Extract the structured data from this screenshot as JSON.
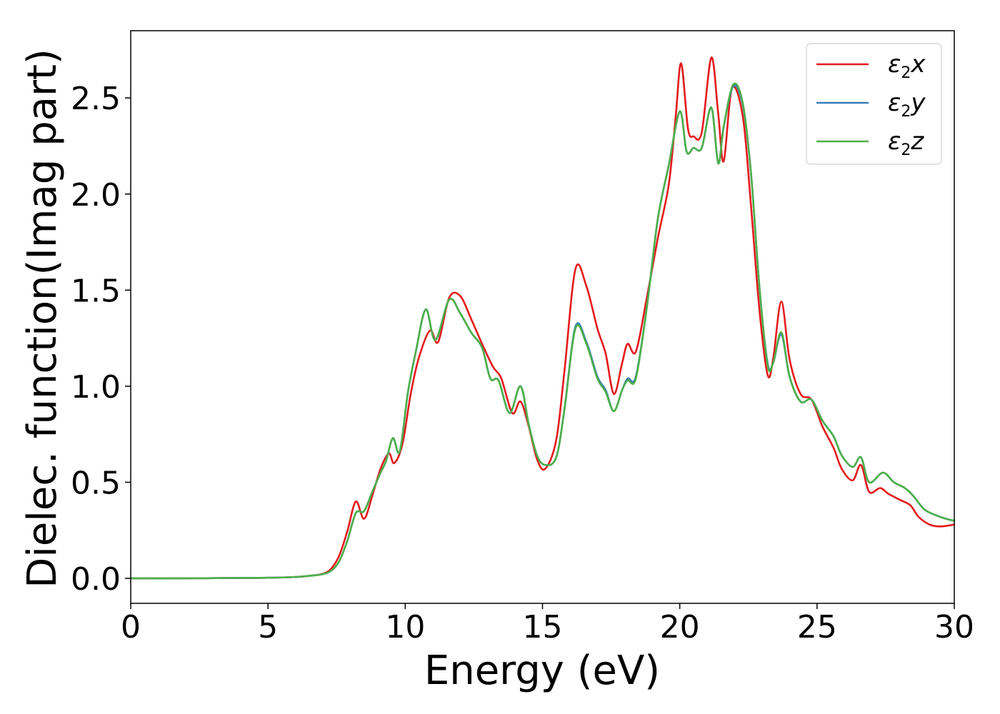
{
  "chart_data": {
    "type": "line",
    "title": "",
    "xlabel": "Energy (eV)",
    "ylabel": "Dielec. function(Imag part)",
    "xlim": [
      0,
      30
    ],
    "ylim": [
      -0.13,
      2.85
    ],
    "xticks": [
      0,
      5,
      10,
      15,
      20,
      25,
      30
    ],
    "xtick_labels": [
      "0",
      "5",
      "10",
      "15",
      "20",
      "25",
      "30"
    ],
    "yticks": [
      0.0,
      0.5,
      1.0,
      1.5,
      2.0,
      2.5
    ],
    "ytick_labels": [
      "0.0",
      "0.5",
      "1.0",
      "1.5",
      "2.0",
      "2.5"
    ],
    "grid": false,
    "legend_position": "top-right",
    "series": [
      {
        "name": "ε2x",
        "legend_base": "ε",
        "legend_sub": "2",
        "legend_suffix": "x",
        "color": "#e31a1c",
        "x": [
          0,
          2,
          4,
          5,
          6,
          6.5,
          7,
          7.3,
          7.6,
          7.9,
          8.2,
          8.5,
          8.8,
          9.1,
          9.4,
          9.6,
          9.9,
          10.2,
          10.5,
          10.9,
          11.2,
          11.6,
          12,
          12.4,
          12.8,
          13.2,
          13.5,
          13.9,
          14.2,
          14.5,
          14.8,
          15.1,
          15.5,
          15.8,
          16.2,
          16.6,
          17,
          17.3,
          17.6,
          17.9,
          18.1,
          18.4,
          18.8,
          19.2,
          19.6,
          19.85,
          20.05,
          20.3,
          20.5,
          20.8,
          21.15,
          21.4,
          21.6,
          21.9,
          22.3,
          22.6,
          22.9,
          23.2,
          23.4,
          23.7,
          24,
          24.4,
          24.8,
          25.2,
          25.6,
          25.9,
          26.3,
          26.6,
          26.9,
          27.3,
          27.6,
          28,
          28.4,
          28.7,
          29.1,
          29.5,
          30
        ],
        "values": [
          0,
          0,
          0.002,
          0.003,
          0.007,
          0.013,
          0.024,
          0.05,
          0.12,
          0.25,
          0.4,
          0.31,
          0.43,
          0.57,
          0.65,
          0.6,
          0.7,
          0.96,
          1.15,
          1.29,
          1.23,
          1.46,
          1.47,
          1.35,
          1.22,
          1.1,
          1.04,
          0.86,
          0.92,
          0.79,
          0.62,
          0.57,
          0.72,
          1.08,
          1.61,
          1.52,
          1.3,
          1.17,
          0.96,
          1.12,
          1.22,
          1.18,
          1.46,
          1.77,
          2.05,
          2.4,
          2.68,
          2.34,
          2.3,
          2.32,
          2.71,
          2.42,
          2.17,
          2.55,
          2.4,
          1.93,
          1.4,
          1.06,
          1.14,
          1.44,
          1.14,
          0.96,
          0.93,
          0.79,
          0.68,
          0.57,
          0.51,
          0.59,
          0.45,
          0.47,
          0.44,
          0.41,
          0.38,
          0.32,
          0.28,
          0.27,
          0.28
        ]
      },
      {
        "name": "ε2y",
        "legend_base": "ε",
        "legend_sub": "2",
        "legend_suffix": "y",
        "color": "#377eb8",
        "x": [
          0,
          2,
          4,
          5,
          6,
          6.5,
          7,
          7.3,
          7.6,
          7.9,
          8.2,
          8.5,
          8.8,
          9.1,
          9.3,
          9.55,
          9.8,
          10.1,
          10.4,
          10.75,
          11.1,
          11.6,
          12,
          12.4,
          12.8,
          13.1,
          13.4,
          13.8,
          14.2,
          14.5,
          14.8,
          15.1,
          15.5,
          15.8,
          16.2,
          16.6,
          17,
          17.3,
          17.6,
          17.9,
          18.1,
          18.4,
          18.8,
          19.2,
          19.6,
          20,
          20.25,
          20.5,
          20.8,
          21.15,
          21.4,
          21.6,
          21.95,
          22.3,
          22.6,
          22.9,
          23.2,
          23.4,
          23.7,
          24,
          24.4,
          24.8,
          25.2,
          25.6,
          25.9,
          26.3,
          26.6,
          26.9,
          27.4,
          27.8,
          28.2,
          28.5,
          28.9,
          29.3,
          29.7,
          30
        ],
        "values": [
          0,
          0,
          0.002,
          0.003,
          0.007,
          0.013,
          0.022,
          0.04,
          0.09,
          0.2,
          0.34,
          0.35,
          0.45,
          0.55,
          0.61,
          0.73,
          0.66,
          0.97,
          1.19,
          1.4,
          1.24,
          1.45,
          1.38,
          1.28,
          1.2,
          1.04,
          1.03,
          0.86,
          1.0,
          0.8,
          0.64,
          0.59,
          0.63,
          0.88,
          1.31,
          1.23,
          1.05,
          0.98,
          0.87,
          0.98,
          1.04,
          1.05,
          1.41,
          1.87,
          2.15,
          2.43,
          2.22,
          2.24,
          2.24,
          2.45,
          2.16,
          2.35,
          2.56,
          2.46,
          2.1,
          1.52,
          1.12,
          1.12,
          1.27,
          1.05,
          0.92,
          0.93,
          0.82,
          0.74,
          0.64,
          0.58,
          0.63,
          0.5,
          0.55,
          0.5,
          0.47,
          0.43,
          0.36,
          0.33,
          0.31,
          0.3
        ]
      },
      {
        "name": "ε2z",
        "legend_base": "ε",
        "legend_sub": "2",
        "legend_suffix": "z",
        "color": "#4daf4a",
        "x": [
          0,
          2,
          4,
          5,
          6,
          6.5,
          7,
          7.3,
          7.6,
          7.9,
          8.2,
          8.5,
          8.8,
          9.1,
          9.3,
          9.55,
          9.8,
          10.1,
          10.4,
          10.75,
          11.1,
          11.6,
          12,
          12.4,
          12.8,
          13.1,
          13.4,
          13.8,
          14.2,
          14.5,
          14.8,
          15.1,
          15.5,
          15.8,
          16.2,
          16.6,
          17,
          17.3,
          17.6,
          17.9,
          18.1,
          18.4,
          18.8,
          19.2,
          19.6,
          20,
          20.25,
          20.5,
          20.8,
          21.15,
          21.4,
          21.6,
          21.95,
          22.3,
          22.6,
          22.9,
          23.2,
          23.4,
          23.7,
          24,
          24.4,
          24.8,
          25.2,
          25.6,
          25.9,
          26.3,
          26.6,
          26.9,
          27.4,
          27.8,
          28.2,
          28.5,
          28.9,
          29.3,
          29.7,
          30
        ],
        "values": [
          0,
          0,
          0.002,
          0.003,
          0.007,
          0.013,
          0.022,
          0.04,
          0.09,
          0.2,
          0.34,
          0.35,
          0.45,
          0.55,
          0.61,
          0.73,
          0.66,
          0.97,
          1.19,
          1.4,
          1.24,
          1.45,
          1.38,
          1.28,
          1.2,
          1.04,
          1.03,
          0.86,
          1.0,
          0.8,
          0.64,
          0.59,
          0.63,
          0.88,
          1.3,
          1.22,
          1.04,
          0.97,
          0.87,
          0.98,
          1.03,
          1.04,
          1.41,
          1.87,
          2.15,
          2.43,
          2.22,
          2.24,
          2.24,
          2.45,
          2.16,
          2.35,
          2.57,
          2.47,
          2.1,
          1.52,
          1.11,
          1.12,
          1.28,
          1.05,
          0.92,
          0.93,
          0.82,
          0.74,
          0.64,
          0.58,
          0.63,
          0.5,
          0.55,
          0.5,
          0.47,
          0.43,
          0.36,
          0.33,
          0.31,
          0.3
        ]
      }
    ]
  }
}
